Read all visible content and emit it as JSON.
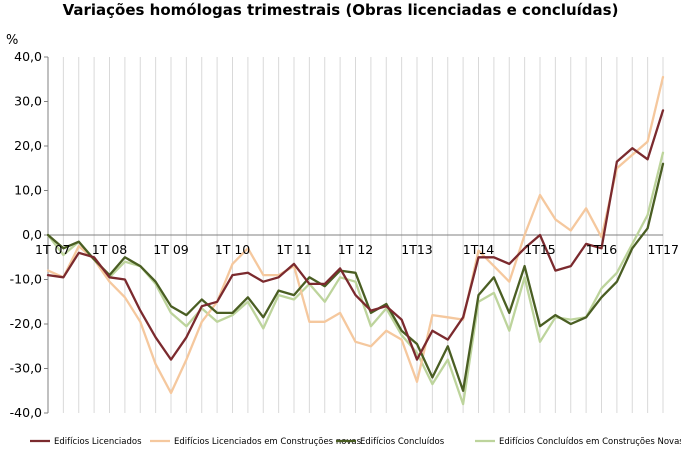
{
  "chart_data": {
    "type": "line",
    "title": "Variações homólogas trimestrais (Obras licenciadas e concluídas)",
    "ylabel": "%",
    "ylim": [
      -40,
      40
    ],
    "yticks": [
      "40,0",
      "30,0",
      "20,0",
      "10,0",
      "0,0",
      "-10,0",
      "-20,0",
      "-30,0",
      "-40,0"
    ],
    "ytick_values": [
      40,
      30,
      20,
      10,
      0,
      -10,
      -20,
      -30,
      -40
    ],
    "x_tick_labels": [
      {
        "label": "1T 07",
        "index": 0
      },
      {
        "label": "1T 08",
        "index": 4
      },
      {
        "label": "1T 09",
        "index": 8
      },
      {
        "label": "1T 10",
        "index": 12
      },
      {
        "label": "1T 11",
        "index": 16
      },
      {
        "label": "1T 12",
        "index": 20
      },
      {
        "label": "1T13",
        "index": 24
      },
      {
        "label": "1T14",
        "index": 28
      },
      {
        "label": "1T15",
        "index": 32
      },
      {
        "label": "1T16",
        "index": 36
      },
      {
        "label": "1T17",
        "index": 40
      }
    ],
    "grid": "vertical",
    "legend_position": "bottom",
    "series": [
      {
        "name": "Edifícios Licenciados",
        "color": "#7b2a2e",
        "values": [
          -9,
          -9.5,
          -4,
          -5,
          -9.5,
          -10,
          -17,
          -23,
          -28,
          -23,
          -16,
          -15,
          -9,
          -8.5,
          -10.5,
          -9.5,
          -6.5,
          -11,
          -11,
          -7.5,
          -13.5,
          -17,
          -16,
          -19,
          -28,
          -21.5,
          -23.5,
          -18.5,
          -5,
          -5,
          -6.5,
          -3,
          0,
          -8,
          -7,
          -2,
          -3,
          16.5,
          19.5,
          17,
          28
        ]
      },
      {
        "name": "Edifícios Licenciados em Construções novas",
        "color": "#f5c89e",
        "values": [
          -8,
          -9.5,
          -2.5,
          -5.5,
          -10.5,
          -14,
          -19.5,
          -29,
          -35.5,
          -28,
          -19.5,
          -15,
          -6.5,
          -3,
          -9,
          -9,
          -7,
          -19.5,
          -19.5,
          -17.5,
          -24,
          -25,
          -21.5,
          -23.5,
          -33,
          -18,
          -18.5,
          -19,
          -3.5,
          -7,
          -10.5,
          0,
          9,
          3.5,
          1,
          6,
          -0.5,
          15,
          18,
          21,
          35.5
        ]
      },
      {
        "name": "Edifícios Concluídos",
        "color": "#4a5e23",
        "values": [
          0,
          -3,
          -1.5,
          -5.5,
          -9,
          -5,
          -7,
          -10.5,
          -16,
          -18,
          -14.5,
          -17.5,
          -17.5,
          -14,
          -18.5,
          -12.5,
          -13.5,
          -9.5,
          -11.5,
          -8,
          -8.5,
          -17.5,
          -15.5,
          -21.5,
          -24.5,
          -32,
          -25,
          -35,
          -13.5,
          -9.5,
          -17.5,
          -7,
          -20.5,
          -18,
          -20,
          -18.5,
          -14,
          -10.5,
          -3,
          1.5,
          16
        ]
      },
      {
        "name": "Edifícios Concluídos em Construções Novas",
        "color": "#bdd49c",
        "values": [
          0,
          -4.5,
          -1.5,
          -5.5,
          -9.5,
          -6,
          -7,
          -11,
          -17.5,
          -20.5,
          -16.5,
          -19.5,
          -18,
          -15,
          -21,
          -13.5,
          -14.5,
          -11,
          -15,
          -9.5,
          -10.5,
          -20.5,
          -16.5,
          -22.5,
          -26.5,
          -33.5,
          -28,
          -38,
          -15,
          -13,
          -21.5,
          -9.5,
          -24,
          -18.5,
          -19,
          -18.5,
          -12,
          -8.5,
          -2,
          4.5,
          18.5
        ]
      }
    ]
  }
}
